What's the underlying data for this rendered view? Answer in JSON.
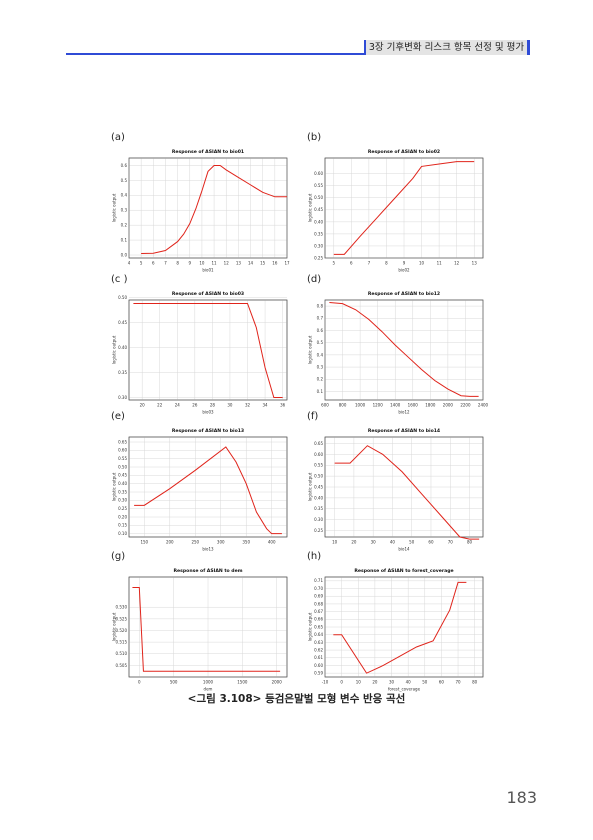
{
  "header": {
    "title": "3장 기후변화 리스크 항목 선정 및 평가"
  },
  "chart_data": [
    {
      "label": "(a)",
      "type": "line",
      "title": "Response of ASIAN to bio01",
      "xlabel": "bio01",
      "ylabel": "logistic output",
      "xlim": [
        4,
        17
      ],
      "ylim": [
        -0.02,
        0.65
      ],
      "xticks": [
        "4",
        "5",
        "6",
        "7",
        "8",
        "9",
        "10",
        "11",
        "12",
        "13",
        "14",
        "15",
        "16",
        "17"
      ],
      "yticks": [
        "0.0",
        "0.1",
        "0.2",
        "0.3",
        "0.4",
        "0.5",
        "0.6"
      ],
      "x": [
        5,
        6,
        7,
        7.5,
        8,
        8.5,
        9,
        9.5,
        10,
        10.5,
        11,
        11.5,
        12,
        13,
        14,
        15,
        16,
        17
      ],
      "y": [
        0.01,
        0.012,
        0.03,
        0.06,
        0.09,
        0.14,
        0.21,
        0.31,
        0.43,
        0.56,
        0.6,
        0.6,
        0.57,
        0.52,
        0.47,
        0.42,
        0.39,
        0.39
      ]
    },
    {
      "label": "(b)",
      "type": "line",
      "title": "Response of ASIAN to bio02",
      "xlabel": "bio02",
      "ylabel": "logistic output",
      "xlim": [
        4.5,
        13.5
      ],
      "ylim": [
        0.25,
        0.665
      ],
      "xticks": [
        "5",
        "6",
        "7",
        "8",
        "9",
        "10",
        "11",
        "12",
        "13"
      ],
      "yticks": [
        "0.25",
        "0.30",
        "0.35",
        "0.40",
        "0.45",
        "0.50",
        "0.55",
        "0.60"
      ],
      "x": [
        5,
        5.6,
        6.5,
        7.5,
        8.5,
        9.5,
        10,
        11,
        12,
        12.5,
        13
      ],
      "y": [
        0.265,
        0.265,
        0.34,
        0.42,
        0.5,
        0.58,
        0.63,
        0.64,
        0.65,
        0.65,
        0.65
      ]
    },
    {
      "label": "(c )",
      "type": "line",
      "title": "Response of ASIAN to bio03",
      "xlabel": "bio03",
      "ylabel": "logistic output",
      "xlim": [
        18.5,
        36.5
      ],
      "ylim": [
        0.295,
        0.495
      ],
      "xticks": [
        "20",
        "22",
        "24",
        "26",
        "28",
        "30",
        "32",
        "34",
        "36"
      ],
      "yticks": [
        "0.30",
        "0.35",
        "0.40",
        "0.45",
        "0.50"
      ],
      "x": [
        19,
        32,
        33,
        34,
        35,
        36
      ],
      "y": [
        0.488,
        0.488,
        0.44,
        0.36,
        0.3,
        0.3
      ]
    },
    {
      "label": "(d)",
      "type": "line",
      "title": "Response of ASIAN to bio12",
      "xlabel": "bio12",
      "ylabel": "logistic output",
      "xlim": [
        600,
        2400
      ],
      "ylim": [
        0.03,
        0.85
      ],
      "xticks": [
        "600",
        "800",
        "1000",
        "1200",
        "1400",
        "1600",
        "1800",
        "2000",
        "2200",
        "2400"
      ],
      "yticks": [
        "0.1",
        "0.2",
        "0.3",
        "0.4",
        "0.5",
        "0.6",
        "0.7",
        "0.8"
      ],
      "x": [
        650,
        800,
        950,
        1100,
        1250,
        1400,
        1550,
        1700,
        1850,
        2000,
        2150,
        2250,
        2350
      ],
      "y": [
        0.83,
        0.82,
        0.77,
        0.69,
        0.59,
        0.48,
        0.38,
        0.28,
        0.19,
        0.12,
        0.065,
        0.06,
        0.06
      ]
    },
    {
      "label": "(e)",
      "type": "line",
      "title": "Response of ASIAN to bio13",
      "xlabel": "bio13",
      "ylabel": "logistic output",
      "xlim": [
        120,
        430
      ],
      "ylim": [
        0.08,
        0.68
      ],
      "xticks": [
        "150",
        "200",
        "250",
        "300",
        "350",
        "400"
      ],
      "yticks": [
        "0.10",
        "0.15",
        "0.20",
        "0.25",
        "0.30",
        "0.35",
        "0.40",
        "0.45",
        "0.50",
        "0.55",
        "0.60",
        "0.65"
      ],
      "x": [
        130,
        150,
        200,
        250,
        310,
        330,
        350,
        370,
        390,
        400,
        420
      ],
      "y": [
        0.27,
        0.27,
        0.37,
        0.48,
        0.62,
        0.53,
        0.4,
        0.23,
        0.13,
        0.1,
        0.1
      ]
    },
    {
      "label": "(f)",
      "type": "line",
      "title": "Response of ASIAN to bio14",
      "xlabel": "bio14",
      "ylabel": "logistic output",
      "xlim": [
        5,
        87
      ],
      "ylim": [
        0.22,
        0.68
      ],
      "xticks": [
        "10",
        "20",
        "30",
        "40",
        "50",
        "60",
        "70",
        "80"
      ],
      "yticks": [
        "0.25",
        "0.30",
        "0.35",
        "0.40",
        "0.45",
        "0.50",
        "0.55",
        "0.60",
        "0.65"
      ],
      "x": [
        10,
        18,
        27,
        35,
        45,
        55,
        65,
        75,
        80,
        85
      ],
      "y": [
        0.56,
        0.56,
        0.64,
        0.6,
        0.52,
        0.42,
        0.32,
        0.22,
        0.21,
        0.21
      ]
    },
    {
      "label": "(g)",
      "type": "line",
      "title": "Response of ASIAN to dem",
      "xlabel": "dem",
      "ylabel": "logistic output",
      "xlim": [
        -150,
        2150
      ],
      "ylim": [
        0.5,
        0.543
      ],
      "xticks": [
        "0",
        "500",
        "1000",
        "1500",
        "2000"
      ],
      "yticks": [
        "0.505",
        "0.510",
        "0.515",
        "0.520",
        "0.525",
        "0.530"
      ],
      "x": [
        -100,
        0,
        60,
        2050
      ],
      "y": [
        0.5385,
        0.5385,
        0.5025,
        0.5025
      ]
    },
    {
      "label": "(h)",
      "type": "line",
      "title": "Response of ASIAN to forest_coverage",
      "xlabel": "forest_coverage",
      "ylabel": "logistic output",
      "xlim": [
        -10,
        85
      ],
      "ylim": [
        0.585,
        0.715
      ],
      "xticks": [
        "-10",
        "0",
        "10",
        "20",
        "30",
        "40",
        "50",
        "60",
        "70",
        "80"
      ],
      "yticks": [
        "0.59",
        "0.60",
        "0.61",
        "0.62",
        "0.63",
        "0.64",
        "0.65",
        "0.66",
        "0.67",
        "0.68",
        "0.69",
        "0.70",
        "0.71"
      ],
      "x": [
        -5,
        0,
        15,
        25,
        35,
        45,
        55,
        65,
        70,
        75
      ],
      "y": [
        0.64,
        0.64,
        0.59,
        0.6,
        0.612,
        0.624,
        0.632,
        0.672,
        0.708,
        0.708
      ]
    }
  ],
  "caption": "<그림 3.108> 등검은말벌 모형 변수 반응 곡선",
  "page_number": "183"
}
